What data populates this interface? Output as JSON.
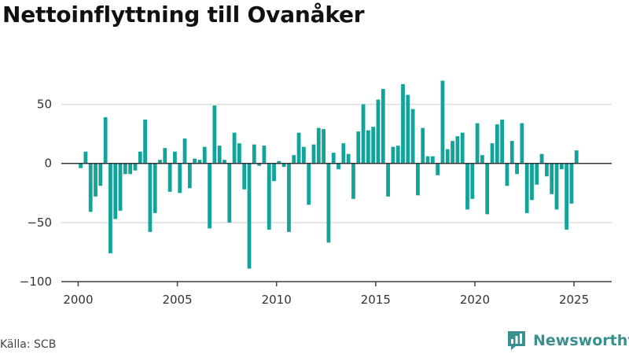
{
  "header": {
    "title": "Nettoinflyttning till Ovanåker"
  },
  "footer": {
    "source": "Källa: SCB",
    "brand": "Newsworthy"
  },
  "colors": {
    "bar": "#12a39a",
    "brand": "#3a8f8f",
    "grid": "#dddddd",
    "zero_line": "#333333"
  },
  "chart_data": {
    "type": "bar",
    "title": "Nettoinflyttning till Ovanåker",
    "xlabel": "",
    "ylabel": "",
    "ylim": [
      -100,
      75
    ],
    "yticks": [
      -100,
      -50,
      0,
      50
    ],
    "xticks": [
      2000,
      2005,
      2010,
      2015,
      2020,
      2025
    ],
    "x_range": [
      1999.15,
      2026.9
    ],
    "grid": true,
    "legend": "none",
    "series": [
      {
        "x": [
          2000.125,
          2000.375,
          2000.625,
          2000.875,
          2001.125,
          2001.375,
          2001.625,
          2001.875,
          2002.125,
          2002.375,
          2002.625,
          2002.875,
          2003.125,
          2003.375,
          2003.625,
          2003.875,
          2004.125,
          2004.375,
          2004.625,
          2004.875,
          2005.125,
          2005.375,
          2005.625,
          2005.875,
          2006.125,
          2006.375,
          2006.625,
          2006.875,
          2007.125,
          2007.375,
          2007.625,
          2007.875,
          2008.125,
          2008.375,
          2008.625,
          2008.875,
          2009.125,
          2009.375,
          2009.625,
          2009.875,
          2010.125,
          2010.375,
          2010.625,
          2010.875,
          2011.125,
          2011.375,
          2011.625,
          2011.875,
          2012.125,
          2012.375,
          2012.625,
          2012.875,
          2013.125,
          2013.375,
          2013.625,
          2013.875,
          2014.125,
          2014.375,
          2014.625,
          2014.875,
          2015.125,
          2015.375,
          2015.625,
          2015.875,
          2016.125,
          2016.375,
          2016.625,
          2016.875,
          2017.125,
          2017.375,
          2017.625,
          2017.875,
          2018.125,
          2018.375,
          2018.625,
          2018.875,
          2019.125,
          2019.375,
          2019.625,
          2019.875,
          2020.125,
          2020.375,
          2020.625,
          2020.875,
          2021.125,
          2021.375,
          2021.625,
          2021.875,
          2022.125,
          2022.375,
          2022.625,
          2022.875,
          2023.125,
          2023.375,
          2023.625,
          2023.875,
          2024.125,
          2024.375,
          2024.625,
          2024.875,
          2025.125,
          2025.375
        ],
        "values": [
          -4,
          10,
          -41,
          -28,
          -19,
          39,
          -76,
          -47,
          -40,
          -9,
          -9,
          -6,
          10,
          37,
          -58,
          -42,
          3,
          13,
          -24,
          10,
          -25,
          21,
          -21,
          4,
          3,
          14,
          -55,
          49,
          15,
          3,
          -50,
          26,
          17,
          -22,
          -89,
          16,
          -2,
          15,
          -56,
          -15,
          2,
          -3,
          -58,
          7,
          26,
          14,
          -35,
          16,
          30,
          29,
          -67,
          9,
          -5,
          17,
          8,
          -30,
          27,
          50,
          28,
          31,
          54,
          63,
          -28,
          14,
          15,
          67,
          58,
          46,
          -27,
          30,
          6,
          6,
          -10,
          70,
          12,
          19,
          23,
          26,
          -39,
          -30,
          34,
          7,
          -43,
          17,
          33,
          37,
          -19,
          19,
          -9,
          34,
          -42,
          -31,
          -18,
          8,
          -11,
          -26,
          -39,
          -5,
          -56,
          -34,
          11,
          0
        ]
      }
    ]
  }
}
